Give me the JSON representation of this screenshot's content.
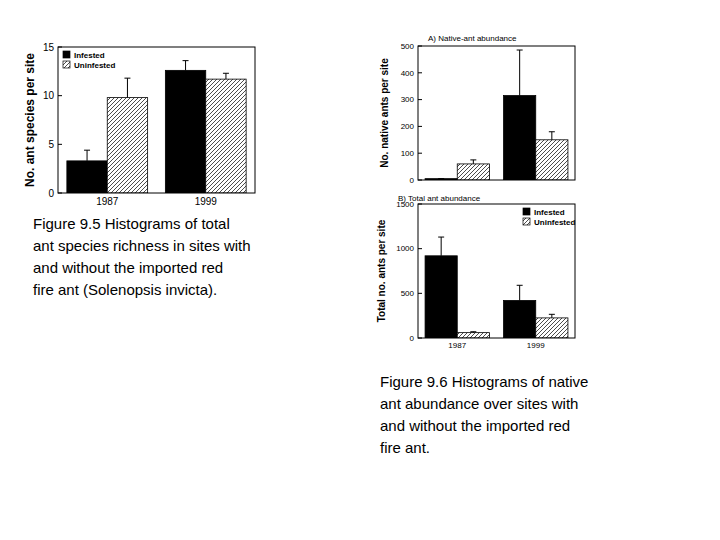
{
  "chart_data": [
    {
      "type": "bar",
      "categories": [
        "1987",
        "1999"
      ],
      "y_label": "No. ant species per site",
      "ylim": [
        0,
        15
      ],
      "yticks": [
        0,
        5,
        10,
        15
      ],
      "legend": "upper left",
      "series": [
        {
          "name": "Infested",
          "color": "#000000",
          "values": [
            3.3,
            12.6
          ],
          "errors": [
            1.1,
            1.0
          ]
        },
        {
          "name": "Uninfested",
          "color": "#ffffff",
          "values": [
            9.8,
            11.7
          ],
          "errors": [
            2.0,
            0.6
          ]
        }
      ]
    },
    {
      "type": "bar",
      "title": "A) Native-ant abundance",
      "categories": [
        null,
        null
      ],
      "tick_labels": "y",
      "y_label": "No. native ants per site",
      "ylim": [
        0,
        500
      ],
      "yticks": [
        0,
        100,
        200,
        300,
        400,
        500
      ],
      "series": [
        {
          "color": "#000000",
          "values": [
            5,
            315
          ],
          "errors": [
            0,
            170
          ]
        },
        {
          "color": "#ffffff",
          "values": [
            60,
            150
          ],
          "errors": [
            15,
            30
          ]
        }
      ]
    },
    {
      "type": "bar",
      "title": "B) Total ant abundance",
      "categories": [
        "1987",
        "1999"
      ],
      "y_label": "Total no. ants per site",
      "ylim": [
        0,
        1500
      ],
      "yticks": [
        0,
        500,
        1000,
        1500
      ],
      "legend": "upper right",
      "series": [
        {
          "name": "Infested",
          "color": "#000000",
          "values": [
            920,
            420
          ],
          "errors": [
            210,
            170
          ]
        },
        {
          "name": "Uninfested",
          "color": "#ffffff",
          "values": [
            60,
            225
          ],
          "errors": [
            10,
            40
          ]
        }
      ]
    }
  ],
  "captions": [
    {
      "lines": [
        "Figure 9.5  Histograms of total",
        "ant species richness in sites with",
        "and without the imported red",
        "fire ant (Solenopsis invicta)."
      ]
    },
    {
      "lines": [
        "Figure 9.6  Histograms of native",
        "ant abundance over sites with",
        "and without the imported red",
        "fire ant."
      ]
    }
  ]
}
